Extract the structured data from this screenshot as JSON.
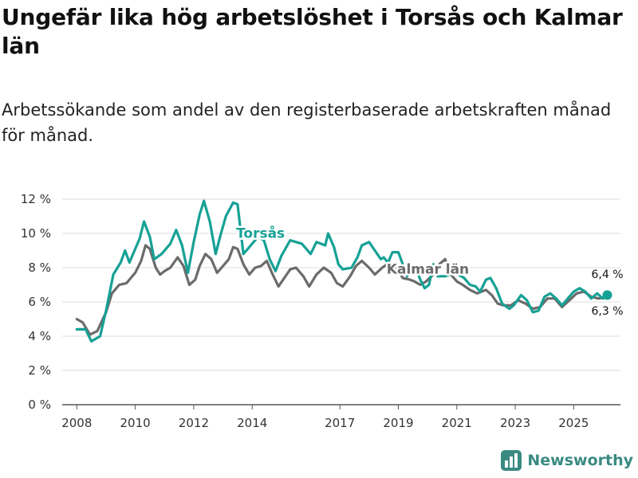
{
  "title": "Ungefär lika hög arbetslöshet i Torsås och Kalmar län",
  "subtitle": "Arbetssökande som andel av den registerbaserade arbetskraften månad för månad.",
  "brand": {
    "name": "Newsworthy"
  },
  "chart_data": {
    "type": "line",
    "ylim": [
      0,
      12
    ],
    "yticks": [
      0,
      2,
      4,
      6,
      8,
      10,
      12
    ],
    "ytick_labels": [
      "0 %",
      "2 %",
      "4 %",
      "6 %",
      "8 %",
      "10 %",
      "12 %"
    ],
    "xlim": [
      2007.5,
      2026.6
    ],
    "xticks": [
      2008,
      2010,
      2012,
      2014,
      2017,
      2019,
      2021,
      2023,
      2025
    ],
    "xtick_labels": [
      "2008",
      "2010",
      "2012",
      "2014",
      "2017",
      "2019",
      "2021",
      "2023",
      "2025"
    ],
    "series": [
      {
        "name": "Torsås",
        "label": "Torsås",
        "color": "#16a195",
        "end_label": "6,4 %",
        "points": [
          [
            2008.0,
            4.4
          ],
          [
            2008.3,
            4.4
          ],
          [
            2008.5,
            3.7
          ],
          [
            2008.8,
            4.0
          ],
          [
            2009.0,
            5.5
          ],
          [
            2009.25,
            7.6
          ],
          [
            2009.5,
            8.3
          ],
          [
            2009.65,
            9.0
          ],
          [
            2009.8,
            8.3
          ],
          [
            2010.0,
            9.1
          ],
          [
            2010.15,
            9.7
          ],
          [
            2010.3,
            10.7
          ],
          [
            2010.5,
            9.8
          ],
          [
            2010.65,
            8.5
          ],
          [
            2010.9,
            8.8
          ],
          [
            2011.2,
            9.4
          ],
          [
            2011.4,
            10.2
          ],
          [
            2011.6,
            9.3
          ],
          [
            2011.8,
            7.7
          ],
          [
            2012.0,
            9.5
          ],
          [
            2012.2,
            11.1
          ],
          [
            2012.35,
            11.9
          ],
          [
            2012.55,
            10.7
          ],
          [
            2012.75,
            8.8
          ],
          [
            2012.9,
            9.8
          ],
          [
            2013.1,
            11.0
          ],
          [
            2013.35,
            11.8
          ],
          [
            2013.5,
            11.7
          ],
          [
            2013.7,
            8.8
          ],
          [
            2013.9,
            9.2
          ],
          [
            2014.2,
            9.8
          ],
          [
            2014.4,
            9.6
          ],
          [
            2014.6,
            8.5
          ],
          [
            2014.8,
            7.8
          ],
          [
            2015.0,
            8.7
          ],
          [
            2015.3,
            9.6
          ],
          [
            2015.5,
            9.5
          ],
          [
            2015.7,
            9.4
          ],
          [
            2016.0,
            8.8
          ],
          [
            2016.2,
            9.5
          ],
          [
            2016.5,
            9.3
          ],
          [
            2016.6,
            10.0
          ],
          [
            2016.8,
            9.2
          ],
          [
            2016.95,
            8.2
          ],
          [
            2017.1,
            7.9
          ],
          [
            2017.4,
            8.0
          ],
          [
            2017.6,
            8.6
          ],
          [
            2017.75,
            9.3
          ],
          [
            2018.0,
            9.5
          ],
          [
            2018.2,
            9.0
          ],
          [
            2018.4,
            8.5
          ],
          [
            2018.5,
            8.6
          ],
          [
            2018.65,
            8.3
          ],
          [
            2018.8,
            8.9
          ],
          [
            2019.0,
            8.9
          ],
          [
            2019.15,
            8.2
          ],
          [
            2019.3,
            7.5
          ],
          [
            2019.45,
            8.1
          ],
          [
            2019.6,
            8.0
          ],
          [
            2019.75,
            7.3
          ],
          [
            2019.9,
            6.8
          ],
          [
            2020.05,
            7.0
          ],
          [
            2020.2,
            8.2
          ],
          [
            2020.35,
            7.5
          ],
          [
            2020.6,
            7.5
          ],
          [
            2020.75,
            7.6
          ],
          [
            2020.9,
            8.0
          ],
          [
            2021.05,
            7.6
          ],
          [
            2021.25,
            7.4
          ],
          [
            2021.45,
            7.0
          ],
          [
            2021.65,
            6.9
          ],
          [
            2021.8,
            6.6
          ],
          [
            2022.0,
            7.3
          ],
          [
            2022.15,
            7.4
          ],
          [
            2022.35,
            6.8
          ],
          [
            2022.55,
            5.9
          ],
          [
            2022.8,
            5.6
          ],
          [
            2022.95,
            5.8
          ],
          [
            2023.2,
            6.4
          ],
          [
            2023.4,
            6.1
          ],
          [
            2023.6,
            5.4
          ],
          [
            2023.8,
            5.5
          ],
          [
            2024.0,
            6.3
          ],
          [
            2024.2,
            6.5
          ],
          [
            2024.4,
            6.2
          ],
          [
            2024.6,
            5.8
          ],
          [
            2024.8,
            6.2
          ],
          [
            2025.0,
            6.6
          ],
          [
            2025.2,
            6.8
          ],
          [
            2025.4,
            6.6
          ],
          [
            2025.6,
            6.2
          ],
          [
            2025.8,
            6.5
          ],
          [
            2026.0,
            6.2
          ],
          [
            2026.15,
            6.4
          ]
        ]
      },
      {
        "name": "Kalmar län",
        "label": "Kalmar län",
        "color": "#6b6b6b",
        "end_label": "6,3 %",
        "points": [
          [
            2008.0,
            5.0
          ],
          [
            2008.2,
            4.8
          ],
          [
            2008.45,
            4.1
          ],
          [
            2008.7,
            4.3
          ],
          [
            2009.0,
            5.4
          ],
          [
            2009.2,
            6.5
          ],
          [
            2009.45,
            7.0
          ],
          [
            2009.7,
            7.1
          ],
          [
            2010.0,
            7.7
          ],
          [
            2010.2,
            8.4
          ],
          [
            2010.35,
            9.3
          ],
          [
            2010.5,
            9.1
          ],
          [
            2010.7,
            8.0
          ],
          [
            2010.85,
            7.6
          ],
          [
            2011.0,
            7.8
          ],
          [
            2011.2,
            8.0
          ],
          [
            2011.45,
            8.6
          ],
          [
            2011.65,
            8.1
          ],
          [
            2011.85,
            7.0
          ],
          [
            2012.05,
            7.3
          ],
          [
            2012.2,
            8.1
          ],
          [
            2012.4,
            8.8
          ],
          [
            2012.6,
            8.5
          ],
          [
            2012.8,
            7.7
          ],
          [
            2013.0,
            8.1
          ],
          [
            2013.2,
            8.5
          ],
          [
            2013.35,
            9.2
          ],
          [
            2013.5,
            9.1
          ],
          [
            2013.7,
            8.2
          ],
          [
            2013.9,
            7.6
          ],
          [
            2014.1,
            8.0
          ],
          [
            2014.3,
            8.1
          ],
          [
            2014.5,
            8.4
          ],
          [
            2014.7,
            7.6
          ],
          [
            2014.9,
            6.9
          ],
          [
            2015.1,
            7.4
          ],
          [
            2015.3,
            7.9
          ],
          [
            2015.5,
            8.0
          ],
          [
            2015.75,
            7.5
          ],
          [
            2015.95,
            6.9
          ],
          [
            2016.2,
            7.6
          ],
          [
            2016.45,
            8.0
          ],
          [
            2016.7,
            7.7
          ],
          [
            2016.9,
            7.1
          ],
          [
            2017.1,
            6.9
          ],
          [
            2017.35,
            7.5
          ],
          [
            2017.55,
            8.1
          ],
          [
            2017.75,
            8.4
          ],
          [
            2018.0,
            8.0
          ],
          [
            2018.2,
            7.6
          ],
          [
            2018.45,
            8.0
          ],
          [
            2018.7,
            8.3
          ],
          [
            2018.95,
            8.0
          ],
          [
            2019.15,
            7.4
          ],
          [
            2019.4,
            7.3
          ],
          [
            2019.55,
            7.2
          ],
          [
            2019.75,
            7.0
          ],
          [
            2019.95,
            7.2
          ],
          [
            2020.2,
            7.6
          ],
          [
            2020.4,
            8.2
          ],
          [
            2020.6,
            8.5
          ],
          [
            2020.8,
            7.6
          ],
          [
            2021.0,
            7.2
          ],
          [
            2021.2,
            7.0
          ],
          [
            2021.45,
            6.7
          ],
          [
            2021.7,
            6.5
          ],
          [
            2022.0,
            6.7
          ],
          [
            2022.2,
            6.4
          ],
          [
            2022.4,
            5.9
          ],
          [
            2022.6,
            5.8
          ],
          [
            2022.85,
            5.8
          ],
          [
            2023.1,
            6.1
          ],
          [
            2023.35,
            5.9
          ],
          [
            2023.6,
            5.6
          ],
          [
            2023.85,
            5.7
          ],
          [
            2024.1,
            6.2
          ],
          [
            2024.35,
            6.2
          ],
          [
            2024.6,
            5.7
          ],
          [
            2024.85,
            6.1
          ],
          [
            2025.1,
            6.5
          ],
          [
            2025.35,
            6.6
          ],
          [
            2025.6,
            6.3
          ],
          [
            2025.85,
            6.2
          ],
          [
            2026.15,
            6.3
          ]
        ]
      }
    ]
  }
}
